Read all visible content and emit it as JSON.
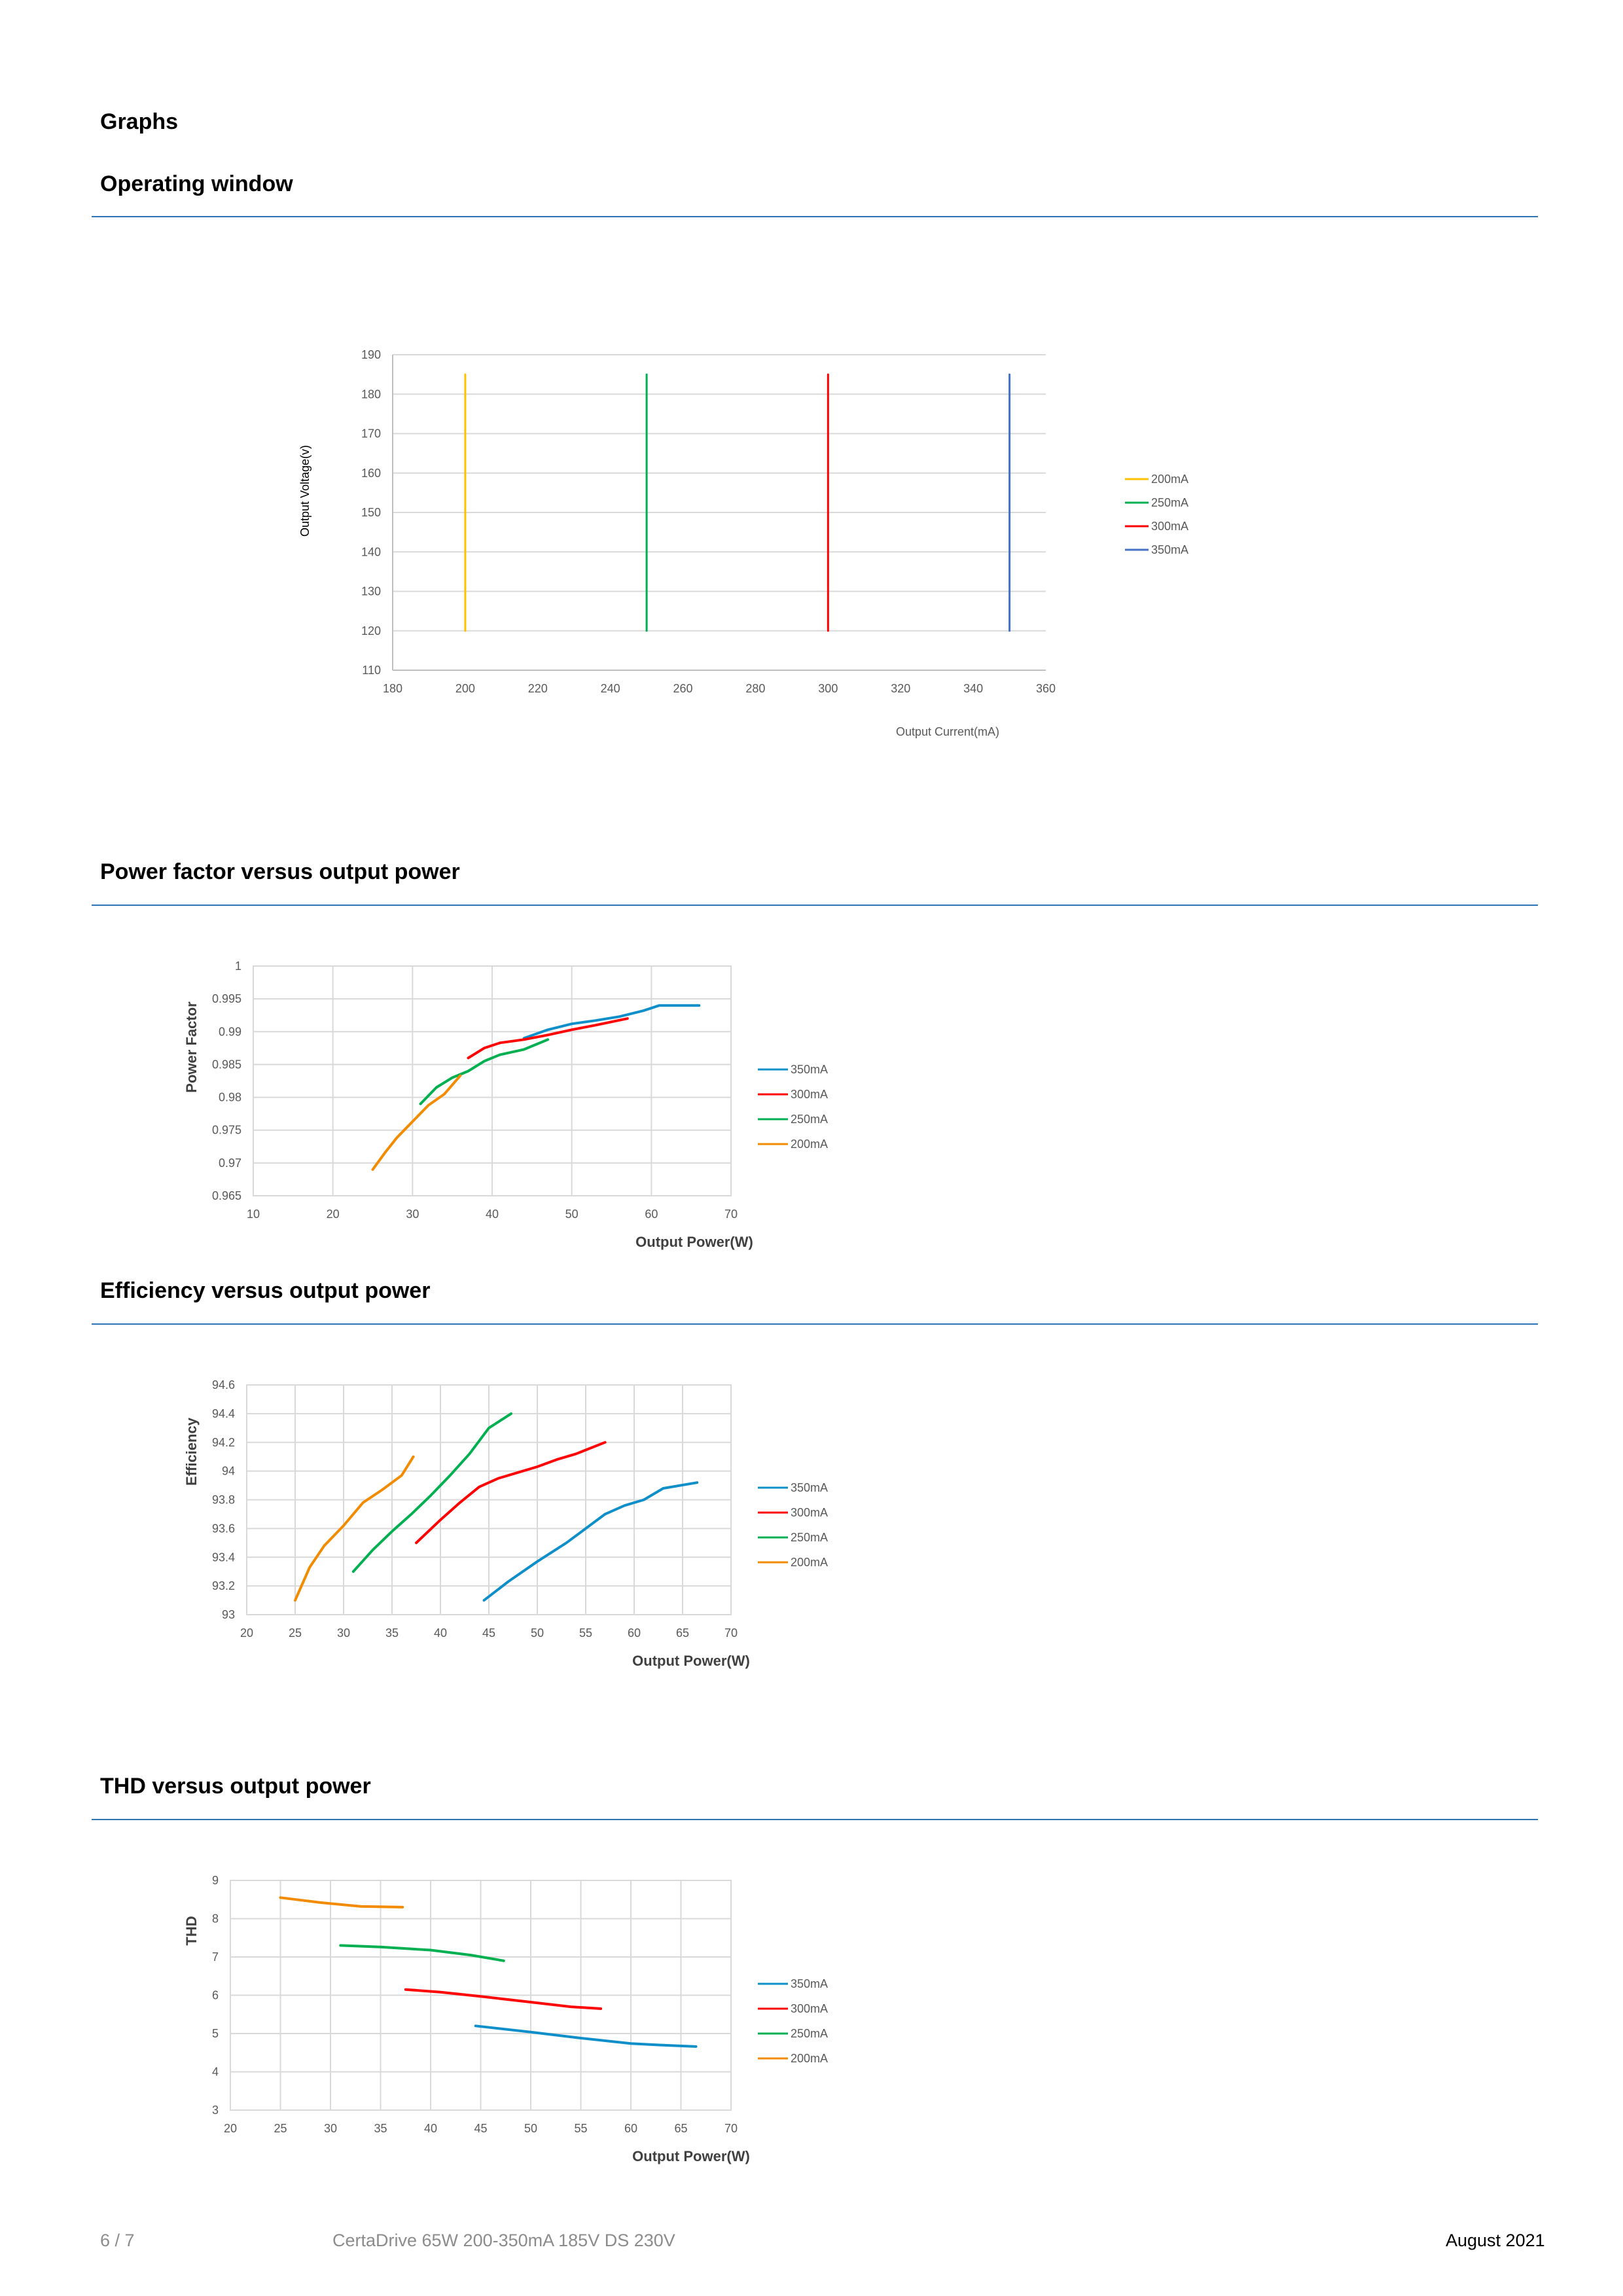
{
  "page": {
    "heading": "Graphs",
    "footer": {
      "page_number": "6 / 7",
      "product": "CertaDrive 65W 200-350mA 185V DS 230V",
      "date": "August 2021"
    }
  },
  "sections": {
    "operating": {
      "title": "Operating window"
    },
    "power_factor": {
      "title": "Power factor versus output power"
    },
    "efficiency": {
      "title": "Efficiency versus output power"
    },
    "thd": {
      "title": "THD versus output power"
    }
  },
  "chart_data": [
    {
      "id": "operating",
      "type": "line",
      "xlabel": "Output Current(mA)",
      "ylabel": "Output Voltage(v)",
      "xlim": [
        180,
        360
      ],
      "ylim": [
        110,
        190
      ],
      "xticks": [
        180,
        200,
        220,
        240,
        260,
        280,
        300,
        320,
        340,
        360
      ],
      "yticks": [
        110,
        120,
        130,
        140,
        150,
        160,
        170,
        180,
        190
      ],
      "grid": true,
      "legend": "right",
      "series": [
        {
          "name": "200mA",
          "color": "#ffc000",
          "x": [
            200,
            200
          ],
          "y": [
            120,
            185
          ]
        },
        {
          "name": "250mA",
          "color": "#00b050",
          "x": [
            250,
            250
          ],
          "y": [
            120,
            185
          ]
        },
        {
          "name": "300mA",
          "color": "#ff0000",
          "x": [
            300,
            300
          ],
          "y": [
            120,
            185
          ]
        },
        {
          "name": "350mA",
          "color": "#4472c4",
          "x": [
            350,
            350
          ],
          "y": [
            120,
            185
          ]
        }
      ]
    },
    {
      "id": "power_factor",
      "type": "line",
      "xlabel": "Output Power(W)",
      "ylabel": "Power Factor",
      "xlim": [
        10,
        70
      ],
      "ylim": [
        0.965,
        1
      ],
      "xticks": [
        10,
        20,
        30,
        40,
        50,
        60,
        70
      ],
      "yticks": [
        0.965,
        0.97,
        0.975,
        0.98,
        0.985,
        0.99,
        0.995,
        1
      ],
      "ytick_labels": [
        "0.965",
        "0.97",
        "0.975",
        "0.98",
        "0.985",
        "0.99",
        "0.995",
        "1"
      ],
      "grid": true,
      "legend": "right",
      "series": [
        {
          "name": "350mA",
          "color": "#0e8fc9",
          "x": [
            44,
            47,
            50,
            53,
            56,
            59,
            61,
            63,
            66
          ],
          "y": [
            0.989,
            0.9903,
            0.9912,
            0.9917,
            0.9923,
            0.9932,
            0.994,
            0.994,
            0.994
          ]
        },
        {
          "name": "300mA",
          "color": "#ff0000",
          "x": [
            37,
            39,
            41,
            44,
            47,
            50,
            53,
            57
          ],
          "y": [
            0.986,
            0.9875,
            0.9883,
            0.9888,
            0.9895,
            0.9903,
            0.991,
            0.992
          ]
        },
        {
          "name": "250mA",
          "color": "#00b050",
          "x": [
            31,
            33,
            35,
            37,
            39,
            41,
            44,
            47
          ],
          "y": [
            0.979,
            0.9815,
            0.983,
            0.984,
            0.9855,
            0.9865,
            0.9873,
            0.9888
          ]
        },
        {
          "name": "200mA",
          "color": "#f28b00",
          "x": [
            25,
            26.5,
            28,
            30,
            32,
            34,
            36
          ],
          "y": [
            0.969,
            0.9715,
            0.9738,
            0.9763,
            0.9788,
            0.9805,
            0.9833
          ]
        }
      ]
    },
    {
      "id": "efficiency",
      "type": "line",
      "xlabel": "Output Power(W)",
      "ylabel": "Efficiency",
      "xlim": [
        20,
        70
      ],
      "ylim": [
        93,
        94.6
      ],
      "xticks": [
        20,
        25,
        30,
        35,
        40,
        45,
        50,
        55,
        60,
        65,
        70
      ],
      "yticks": [
        93,
        93.2,
        93.4,
        93.6,
        93.8,
        94,
        94.2,
        94.4,
        94.6
      ],
      "ytick_labels": [
        "93",
        "93.2",
        "93.4",
        "93.6",
        "93.8",
        "94",
        "94.2",
        "94.4",
        "94.6"
      ],
      "grid": true,
      "legend": "right",
      "series": [
        {
          "name": "350mA",
          "color": "#0e8fc9",
          "x": [
            44.5,
            47,
            50,
            53,
            55,
            57,
            59,
            61,
            63,
            66.5
          ],
          "y": [
            93.1,
            93.23,
            93.37,
            93.5,
            93.6,
            93.7,
            93.76,
            93.8,
            93.88,
            93.92
          ]
        },
        {
          "name": "300mA",
          "color": "#ff0000",
          "x": [
            37.5,
            40,
            42,
            44,
            46,
            48,
            50,
            52,
            54,
            57
          ],
          "y": [
            93.5,
            93.66,
            93.78,
            93.89,
            93.95,
            93.99,
            94.03,
            94.08,
            94.12,
            94.2
          ]
        },
        {
          "name": "250mA",
          "color": "#00b050",
          "x": [
            31,
            33,
            35,
            37,
            39,
            41,
            43,
            45,
            47.3
          ],
          "y": [
            93.3,
            93.45,
            93.58,
            93.7,
            93.83,
            93.97,
            94.12,
            94.3,
            94.4
          ]
        },
        {
          "name": "200mA",
          "color": "#f28b00",
          "x": [
            25,
            26.5,
            28,
            30,
            32,
            34,
            36,
            37.2
          ],
          "y": [
            93.1,
            93.33,
            93.48,
            93.62,
            93.78,
            93.87,
            93.97,
            94.1
          ]
        }
      ]
    },
    {
      "id": "thd",
      "type": "line",
      "xlabel": "Output Power(W)",
      "ylabel": "THD",
      "xlim": [
        20,
        70
      ],
      "ylim": [
        3,
        9
      ],
      "xticks": [
        20,
        25,
        30,
        35,
        40,
        45,
        50,
        55,
        60,
        65,
        70
      ],
      "yticks": [
        3,
        4,
        5,
        6,
        7,
        8,
        9
      ],
      "ytick_labels": [
        "3",
        "4",
        "5",
        "6",
        "7",
        "8",
        "9"
      ],
      "grid": true,
      "legend": "right",
      "series": [
        {
          "name": "350mA",
          "color": "#0e8fc9",
          "x": [
            44.5,
            50,
            55,
            60,
            63,
            66.5
          ],
          "y": [
            5.2,
            5.04,
            4.88,
            4.74,
            4.7,
            4.66
          ]
        },
        {
          "name": "300mA",
          "color": "#ff0000",
          "x": [
            37.5,
            41,
            45,
            50,
            54,
            57
          ],
          "y": [
            6.15,
            6.08,
            5.97,
            5.82,
            5.7,
            5.65
          ]
        },
        {
          "name": "250mA",
          "color": "#00b050",
          "x": [
            31,
            35,
            40,
            44,
            47.3
          ],
          "y": [
            7.3,
            7.26,
            7.18,
            7.05,
            6.9
          ]
        },
        {
          "name": "200mA",
          "color": "#f28b00",
          "x": [
            25,
            29,
            33,
            37.2
          ],
          "y": [
            8.55,
            8.42,
            8.32,
            8.3
          ]
        }
      ]
    }
  ]
}
